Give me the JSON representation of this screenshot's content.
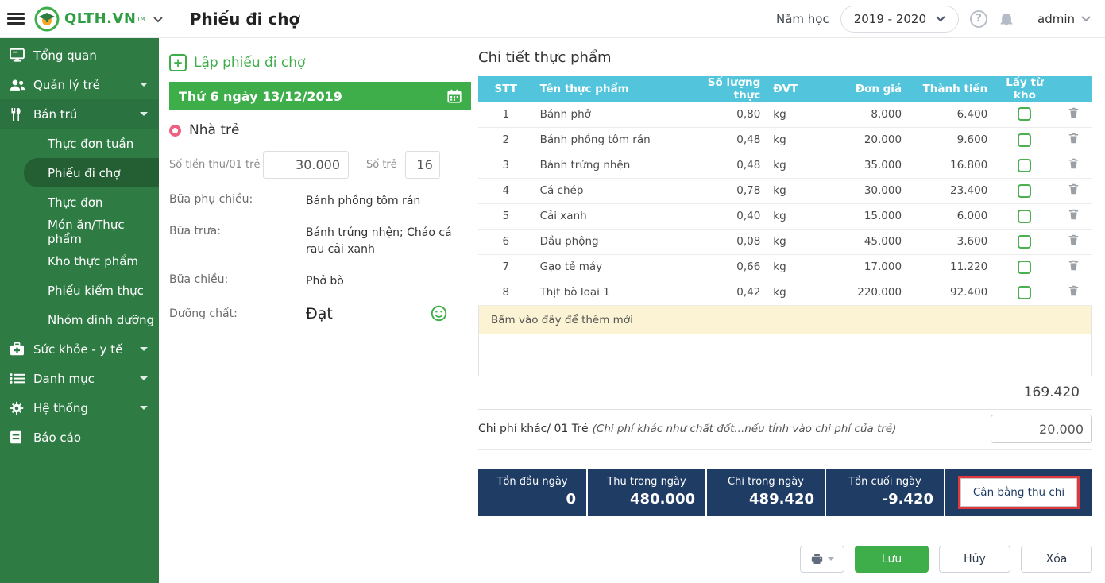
{
  "header": {
    "brand": "QLTH.VN",
    "brand_tm": "TM",
    "page_title": "Phiếu đi chợ",
    "school_year_label": "Năm học",
    "school_year_value": "2019 - 2020",
    "help": "?",
    "username": "admin"
  },
  "sidebar": {
    "items": [
      {
        "label": "Tổng quan",
        "icon": "monitor-icon"
      },
      {
        "label": "Quản lý trẻ",
        "icon": "users-icon"
      },
      {
        "label": "Bán trú",
        "icon": "utensils-icon"
      },
      {
        "label": "Sức khỏe - y tế",
        "icon": "medkit-icon"
      },
      {
        "label": "Danh mục",
        "icon": "list-icon"
      },
      {
        "label": "Hệ thống",
        "icon": "gear-icon"
      },
      {
        "label": "Báo cáo",
        "icon": "report-icon"
      }
    ],
    "ban_tru_children": [
      "Thực đơn tuần",
      "Phiếu đi chợ",
      "Thực đơn",
      "Món ăn/Thực phẩm",
      "Kho thực phẩm",
      "Phiếu kiểm thực",
      "Nhóm dinh dưỡng"
    ],
    "active_child": "Phiếu đi chợ"
  },
  "form": {
    "create_label": "Lập phiếu đi chợ",
    "date_label": "Thứ 6 ngày 13/12/2019",
    "group_label": "Nhà trẻ",
    "fee_label": "Số tiền thu/01 trẻ",
    "fee_value": "30.000",
    "children_label": "Số trẻ",
    "children_value": "16",
    "meals": [
      {
        "label": "Bữa phụ chiều:",
        "value": "Bánh phồng tôm rán"
      },
      {
        "label": "Bữa trưa:",
        "value": "Bánh trứng nhện; Cháo cá rau cải xanh"
      },
      {
        "label": "Bữa chiều:",
        "value": "Phở bò"
      }
    ],
    "nutrition_label": "Dưỡng chất:",
    "nutrition_value": "Đạt"
  },
  "table": {
    "title": "Chi tiết thực phẩm",
    "columns": [
      "STT",
      "Tên thực phẩm",
      "Số lượng thực",
      "ĐVT",
      "Đơn giá",
      "Thành tiền",
      "Lấy từ kho"
    ],
    "rows": [
      {
        "stt": "1",
        "name": "Bánh phở",
        "qty": "0,80",
        "unit": "kg",
        "price": "8.000",
        "amount": "6.400"
      },
      {
        "stt": "2",
        "name": "Bánh phồng tôm rán",
        "qty": "0,48",
        "unit": "kg",
        "price": "20.000",
        "amount": "9.600"
      },
      {
        "stt": "3",
        "name": "Bánh trứng nhện",
        "qty": "0,48",
        "unit": "kg",
        "price": "35.000",
        "amount": "16.800"
      },
      {
        "stt": "4",
        "name": "Cá chép",
        "qty": "0,78",
        "unit": "kg",
        "price": "30.000",
        "amount": "23.400"
      },
      {
        "stt": "5",
        "name": "Cải xanh",
        "qty": "0,40",
        "unit": "kg",
        "price": "15.000",
        "amount": "6.000"
      },
      {
        "stt": "6",
        "name": "Dầu phộng",
        "qty": "0,08",
        "unit": "kg",
        "price": "45.000",
        "amount": "3.600"
      },
      {
        "stt": "7",
        "name": "Gạo tẻ máy",
        "qty": "0,66",
        "unit": "kg",
        "price": "17.000",
        "amount": "11.220"
      },
      {
        "stt": "8",
        "name": "Thịt bò loại 1",
        "qty": "0,42",
        "unit": "kg",
        "price": "220.000",
        "amount": "92.400"
      }
    ],
    "add_row_label": "Bấm vào đây để thêm mới",
    "total": "169.420"
  },
  "other_cost": {
    "label": "Chi phí khác/ 01 Trẻ",
    "note": "(Chi phí khác như chất đốt...nếu tính vào chi phí của trẻ)",
    "value": "20.000"
  },
  "summary": {
    "cells": [
      {
        "label": "Tồn đầu ngày",
        "value": "0"
      },
      {
        "label": "Thu trong ngày",
        "value": "480.000"
      },
      {
        "label": "Chi trong ngày",
        "value": "489.420"
      },
      {
        "label": "Tồn cuối ngày",
        "value": "-9.420"
      }
    ],
    "balance_button": "Cân bằng thu chi"
  },
  "actions": {
    "save": "Lưu",
    "cancel": "Hủy",
    "delete": "Xóa"
  },
  "colors": {
    "sidebar_green": "#2e7c44",
    "accent_green": "#3dae49",
    "table_header_cyan": "#52c5dc",
    "summary_navy": "#1f3c64",
    "highlight_red": "#e2373d",
    "add_row_yellow": "#fbf3d3"
  }
}
